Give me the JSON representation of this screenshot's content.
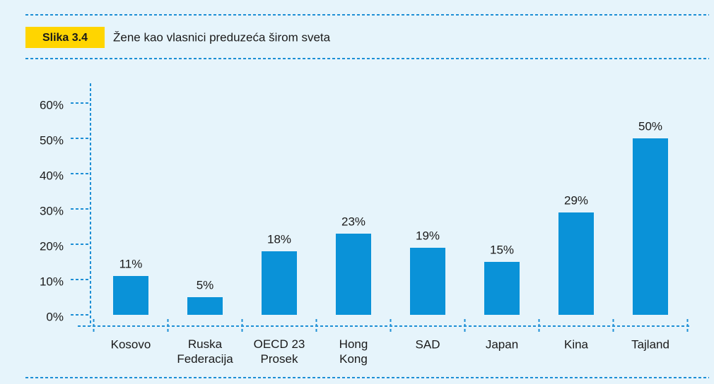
{
  "chart_data": {
    "type": "bar",
    "figure_label": "Slika 3.4",
    "title": "Žene kao vlasnici preduzeća širom sveta",
    "categories": [
      "Kosovo",
      "Ruska\nFederacija",
      "OECD 23\nProsek",
      "Hong\nKong",
      "SAD",
      "Japan",
      "Kina",
      "Tajland"
    ],
    "values": [
      11,
      5,
      18,
      23,
      19,
      15,
      29,
      50
    ],
    "value_labels": [
      "11%",
      "5%",
      "18%",
      "23%",
      "19%",
      "15%",
      "29%",
      "50%"
    ],
    "color": "#0a92d8",
    "ylim": [
      0,
      60
    ],
    "yticks": [
      {
        "value": 0,
        "label": "0%"
      },
      {
        "value": 10,
        "label": "10%"
      },
      {
        "value": 20,
        "label": "20%"
      },
      {
        "value": 30,
        "label": "30%"
      },
      {
        "value": 40,
        "label": "40%"
      },
      {
        "value": 50,
        "label": "50%"
      },
      {
        "value": 60,
        "label": "60%"
      }
    ],
    "grid": false
  }
}
